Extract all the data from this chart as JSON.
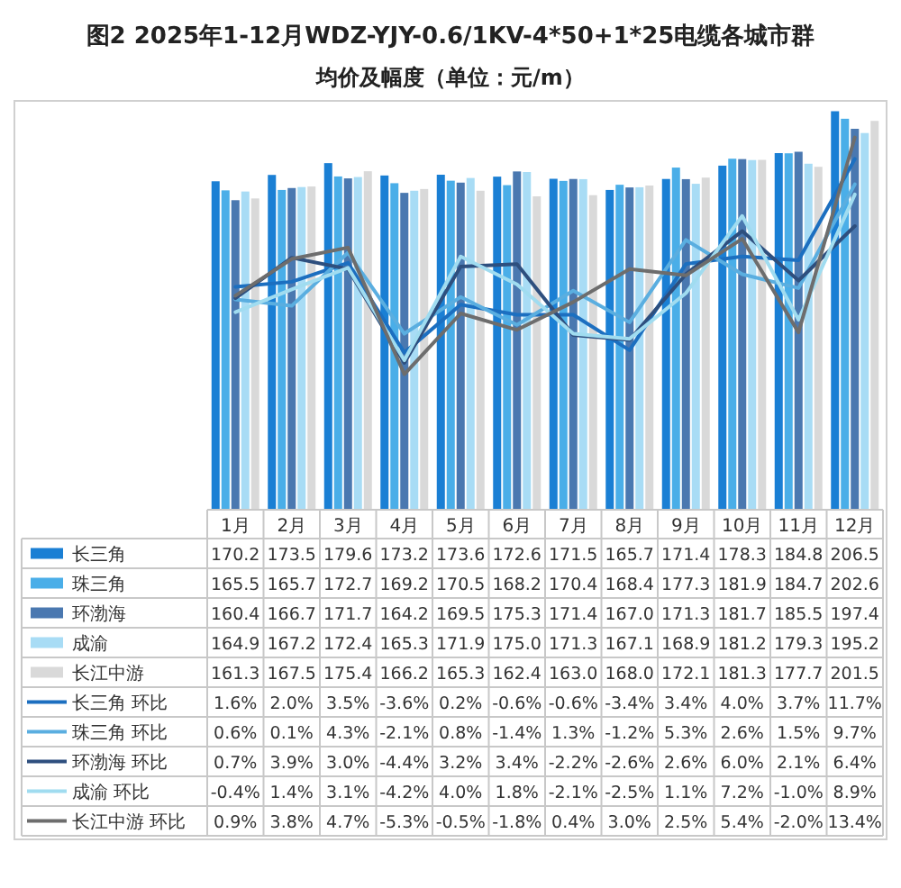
{
  "chart_data": {
    "type": "bar",
    "title": "图2 2025年1-12月WDZ-YJY-0.6/1KV-4*50+1*25电缆各城市群",
    "subtitle": "均价及幅度（单位：元/m）",
    "categories": [
      "1月",
      "2月",
      "3月",
      "4月",
      "5月",
      "6月",
      "7月",
      "8月",
      "9月",
      "10月",
      "11月",
      "12月"
    ],
    "ylim": [
      0,
      210
    ],
    "y2lim": [
      -16,
      16
    ],
    "legend": "bottom",
    "series": [
      {
        "name": "长三角",
        "color": "#1a7fd4",
        "values": [
          170.2,
          173.5,
          179.6,
          173.2,
          173.6,
          172.6,
          171.5,
          165.7,
          171.4,
          178.3,
          184.8,
          206.5
        ],
        "value_labels": [
          "170.2",
          "173.5",
          "179.6",
          "173.2",
          "173.6",
          "172.6",
          "171.5",
          "165.7",
          "171.4",
          "178.3",
          "184.8",
          "206.5"
        ]
      },
      {
        "name": "珠三角",
        "color": "#4aaee8",
        "values": [
          165.5,
          165.7,
          172.7,
          169.2,
          170.5,
          168.2,
          170.4,
          168.4,
          177.3,
          181.9,
          184.7,
          202.6
        ],
        "value_labels": [
          "165.5",
          "165.7",
          "172.7",
          "169.2",
          "170.5",
          "168.2",
          "170.4",
          "168.4",
          "177.3",
          "181.9",
          "184.7",
          "202.6"
        ]
      },
      {
        "name": "环渤海",
        "color": "#4a78b0",
        "values": [
          160.4,
          166.7,
          171.7,
          164.2,
          169.5,
          175.3,
          171.4,
          167.0,
          171.3,
          181.7,
          185.5,
          197.4
        ],
        "value_labels": [
          "160.4",
          "166.7",
          "171.7",
          "164.2",
          "169.5",
          "175.3",
          "171.4",
          "167.0",
          "171.3",
          "181.7",
          "185.5",
          "197.4"
        ]
      },
      {
        "name": "成渝",
        "color": "#a8dcf5",
        "values": [
          164.9,
          167.2,
          172.4,
          165.3,
          171.9,
          175.0,
          171.3,
          167.1,
          168.9,
          181.2,
          179.3,
          195.2
        ],
        "value_labels": [
          "164.9",
          "167.2",
          "172.4",
          "165.3",
          "171.9",
          "175.0",
          "171.3",
          "167.1",
          "168.9",
          "181.2",
          "179.3",
          "195.2"
        ]
      },
      {
        "name": "长江中游",
        "color": "#d9d9d9",
        "values": [
          161.3,
          167.5,
          175.4,
          166.2,
          165.3,
          162.4,
          163.0,
          168.0,
          172.1,
          181.3,
          177.7,
          201.5
        ],
        "value_labels": [
          "161.3",
          "167.5",
          "175.4",
          "166.2",
          "165.3",
          "162.4",
          "163.0",
          "168.0",
          "172.1",
          "181.3",
          "177.7",
          "201.5"
        ]
      },
      {
        "name": "长三角 环比",
        "type": "line",
        "axis": "y2",
        "color": "#1c6fc0",
        "values": [
          1.6,
          2.0,
          3.5,
          -3.6,
          0.2,
          -0.6,
          -0.6,
          -3.4,
          3.4,
          4.0,
          3.7,
          11.7
        ],
        "value_labels": [
          "1.6%",
          "2.0%",
          "3.5%",
          "-3.6%",
          "0.2%",
          "-0.6%",
          "-0.6%",
          "-3.4%",
          "3.4%",
          "4.0%",
          "3.7%",
          "11.7%"
        ]
      },
      {
        "name": "珠三角 环比",
        "type": "line",
        "axis": "y2",
        "color": "#5aaee0",
        "values": [
          0.6,
          0.1,
          4.3,
          -2.1,
          0.8,
          -1.4,
          1.3,
          -1.2,
          5.3,
          2.6,
          1.5,
          9.7
        ],
        "value_labels": [
          "0.6%",
          "0.1%",
          "4.3%",
          "-2.1%",
          "0.8%",
          "-1.4%",
          "1.3%",
          "-1.2%",
          "5.3%",
          "2.6%",
          "1.5%",
          "9.7%"
        ]
      },
      {
        "name": "环渤海 环比",
        "type": "line",
        "axis": "y2",
        "color": "#2e4f7e",
        "values": [
          0.7,
          3.9,
          3.0,
          -4.4,
          3.2,
          3.4,
          -2.2,
          -2.6,
          2.6,
          6.0,
          2.1,
          6.4
        ],
        "value_labels": [
          "0.7%",
          "3.9%",
          "3.0%",
          "-4.4%",
          "3.2%",
          "3.4%",
          "-2.2%",
          "-2.6%",
          "2.6%",
          "6.0%",
          "2.1%",
          "6.4%"
        ]
      },
      {
        "name": "成渝 环比",
        "type": "line",
        "axis": "y2",
        "color": "#a0dcf0",
        "values": [
          -0.4,
          1.4,
          3.1,
          -4.2,
          4.0,
          1.8,
          -2.1,
          -2.5,
          1.1,
          7.2,
          -1.0,
          8.9
        ],
        "value_labels": [
          "-0.4%",
          "1.4%",
          "3.1%",
          "-4.2%",
          "4.0%",
          "1.8%",
          "-2.1%",
          "-2.5%",
          "1.1%",
          "7.2%",
          "-1.0%",
          "8.9%"
        ]
      },
      {
        "name": "长江中游 环比",
        "type": "line",
        "axis": "y2",
        "color": "#6d6d6d",
        "values": [
          0.9,
          3.8,
          4.7,
          -5.3,
          -0.5,
          -1.8,
          0.4,
          3.0,
          2.5,
          5.4,
          -2.0,
          13.4
        ],
        "value_labels": [
          "0.9%",
          "3.8%",
          "4.7%",
          "-5.3%",
          "-0.5%",
          "-1.8%",
          "0.4%",
          "3.0%",
          "2.5%",
          "5.4%",
          "-2.0%",
          "13.4%"
        ]
      }
    ]
  }
}
